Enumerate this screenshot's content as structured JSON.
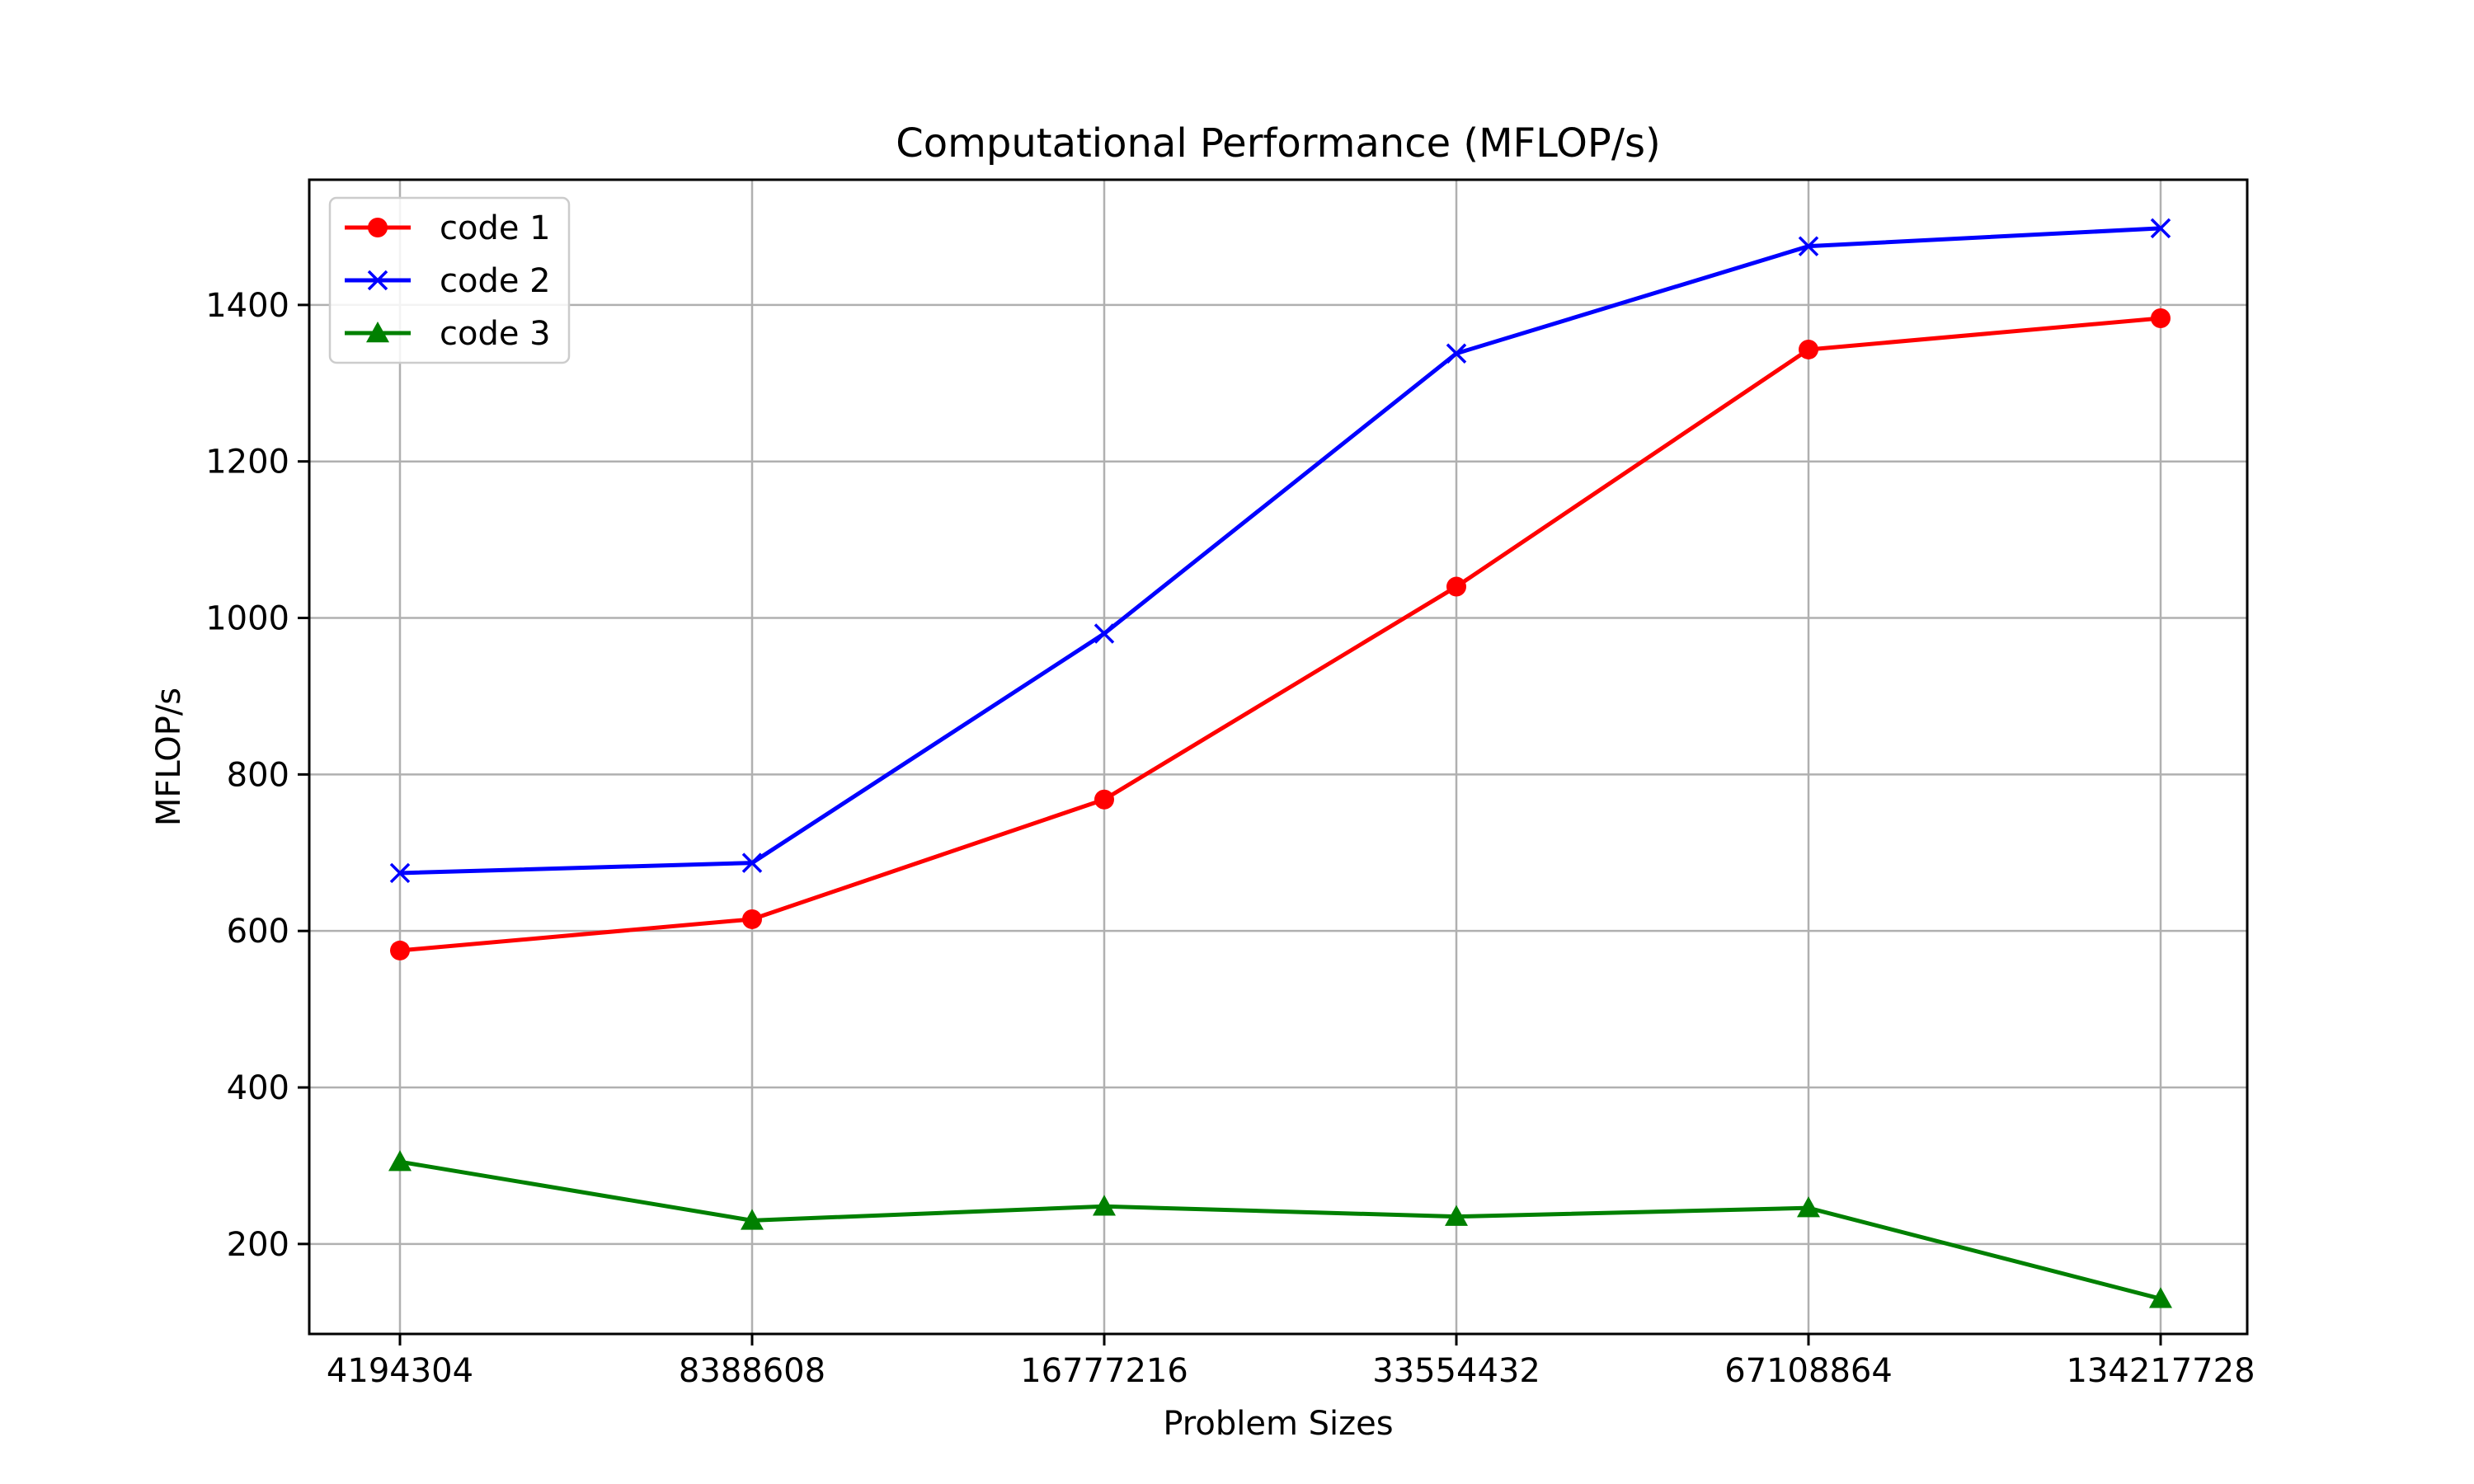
{
  "chart_data": {
    "type": "line",
    "title": "Computational Performance (MFLOP/s)",
    "xlabel": "Problem Sizes",
    "ylabel": "MFLOP/s",
    "categories": [
      "4194304",
      "8388608",
      "16777216",
      "33554432",
      "67108864",
      "134217728"
    ],
    "yticks": [
      200,
      400,
      600,
      800,
      1000,
      1200,
      1400
    ],
    "ylim": [
      85,
      1560
    ],
    "grid": true,
    "legend_position": "upper-left",
    "series": [
      {
        "name": "code 1",
        "color": "#ff0000",
        "marker": "circle",
        "values": [
          575,
          615,
          768,
          1040,
          1343,
          1383
        ]
      },
      {
        "name": "code 2",
        "color": "#0000ff",
        "marker": "x",
        "values": [
          674,
          687,
          980,
          1338,
          1475,
          1498
        ]
      },
      {
        "name": "code 3",
        "color": "#008000",
        "marker": "triangle",
        "values": [
          305,
          230,
          248,
          235,
          246,
          130
        ]
      }
    ]
  }
}
